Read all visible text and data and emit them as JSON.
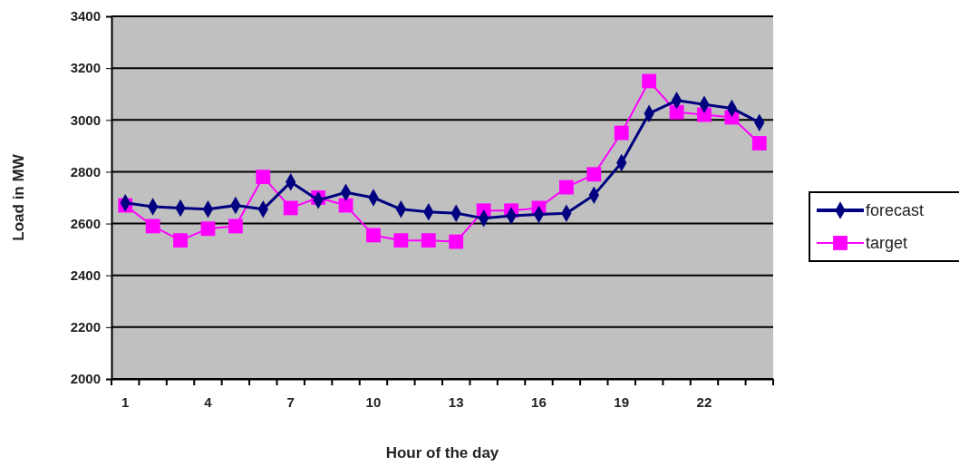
{
  "chart_data": {
    "type": "line",
    "xlabel": "Hour of the day",
    "ylabel": "Load in MW",
    "categories": [
      "1",
      null,
      null,
      "4",
      null,
      null,
      "7",
      null,
      null,
      "10",
      null,
      null,
      "13",
      null,
      null,
      "16",
      null,
      null,
      "19",
      null,
      null,
      "22",
      null,
      null
    ],
    "series": [
      {
        "name": "forecast",
        "color": "#000080",
        "marker": "diamond",
        "values": [
          2680,
          2665,
          2660,
          2655,
          2670,
          2655,
          2760,
          2690,
          2720,
          2700,
          2655,
          2645,
          2640,
          2620,
          2630,
          2635,
          2640,
          2710,
          2835,
          3025,
          3075,
          3060,
          3045,
          2990
        ]
      },
      {
        "name": "target",
        "color": "#ff00ff",
        "marker": "square",
        "values": [
          2670,
          2590,
          2535,
          2580,
          2590,
          2780,
          2660,
          2700,
          2670,
          2555,
          2535,
          2535,
          2530,
          2650,
          2650,
          2660,
          2740,
          2790,
          2950,
          3150,
          3030,
          3020,
          3010,
          2910
        ]
      }
    ],
    "ylim": [
      2000,
      3400
    ],
    "yticks": [
      2000,
      2200,
      2400,
      2600,
      2800,
      3000,
      3200,
      3400
    ],
    "grid": "y",
    "legend": "right"
  }
}
